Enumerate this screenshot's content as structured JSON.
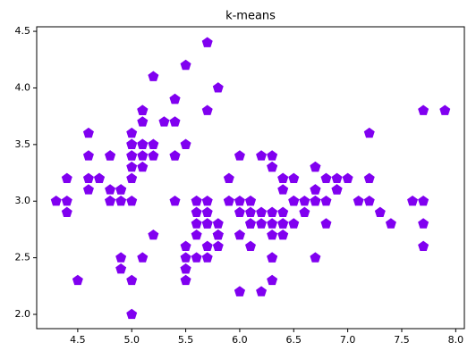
{
  "chart_data": {
    "type": "scatter",
    "title": "k-means",
    "color": "#8000f0",
    "marker": "pentagon",
    "x": [
      5.1,
      4.9,
      4.7,
      4.6,
      5.0,
      5.4,
      4.6,
      5.0,
      4.4,
      4.9,
      5.4,
      4.8,
      4.8,
      4.3,
      5.8,
      5.7,
      5.4,
      5.1,
      5.7,
      5.1,
      5.4,
      5.1,
      4.6,
      5.1,
      4.8,
      5.0,
      5.0,
      5.2,
      5.2,
      4.7,
      4.8,
      5.4,
      5.2,
      5.5,
      4.9,
      5.0,
      5.5,
      4.9,
      4.4,
      5.1,
      5.0,
      4.5,
      4.4,
      5.0,
      5.1,
      4.8,
      5.1,
      4.6,
      5.3,
      5.0,
      7.0,
      6.4,
      6.9,
      5.5,
      6.5,
      5.7,
      6.3,
      4.9,
      6.6,
      5.2,
      5.0,
      5.9,
      6.0,
      6.1,
      5.6,
      6.7,
      5.6,
      5.8,
      6.2,
      5.6,
      5.9,
      6.1,
      6.3,
      6.1,
      6.4,
      6.6,
      6.8,
      6.7,
      6.0,
      5.7,
      5.5,
      5.5,
      5.8,
      6.0,
      5.4,
      6.0,
      6.7,
      6.3,
      5.6,
      5.5,
      5.5,
      6.1,
      5.8,
      5.0,
      5.6,
      5.7,
      5.7,
      6.2,
      5.1,
      5.7,
      6.3,
      5.8,
      7.1,
      6.3,
      6.5,
      7.6,
      4.9,
      7.3,
      6.7,
      7.2,
      6.5,
      6.4,
      6.8,
      5.7,
      5.8,
      6.4,
      6.5,
      7.7,
      7.7,
      6.0,
      6.9,
      5.6,
      7.7,
      6.3,
      6.7,
      7.2,
      6.2,
      6.1,
      6.4,
      7.2,
      7.4,
      7.9,
      6.4,
      6.3,
      6.1,
      7.7,
      6.3,
      6.4,
      6.0,
      6.9,
      6.7,
      6.9,
      5.8,
      6.8,
      6.7,
      6.7,
      6.3,
      6.5,
      6.2,
      5.9
    ],
    "y": [
      3.5,
      3.0,
      3.2,
      3.1,
      3.6,
      3.9,
      3.4,
      3.4,
      2.9,
      3.1,
      3.7,
      3.4,
      3.0,
      3.0,
      4.0,
      4.4,
      3.9,
      3.5,
      3.8,
      3.8,
      3.4,
      3.7,
      3.6,
      3.3,
      3.4,
      3.0,
      3.4,
      3.5,
      3.4,
      3.2,
      3.1,
      3.4,
      4.1,
      4.2,
      3.1,
      3.2,
      3.5,
      3.1,
      3.0,
      3.4,
      3.5,
      2.3,
      3.2,
      3.5,
      3.8,
      3.0,
      3.8,
      3.2,
      3.7,
      3.3,
      3.2,
      3.2,
      3.1,
      2.3,
      2.8,
      2.8,
      3.3,
      2.4,
      2.9,
      2.7,
      2.0,
      3.0,
      2.2,
      2.9,
      2.9,
      3.1,
      3.0,
      2.7,
      2.2,
      2.5,
      3.2,
      2.8,
      2.5,
      2.8,
      2.9,
      3.0,
      2.8,
      3.0,
      2.9,
      2.6,
      2.4,
      2.4,
      2.7,
      2.7,
      3.0,
      3.4,
      3.1,
      2.3,
      3.0,
      2.5,
      2.6,
      3.0,
      2.6,
      2.3,
      2.7,
      3.0,
      2.9,
      2.9,
      2.5,
      2.8,
      3.3,
      2.7,
      3.0,
      2.9,
      3.0,
      3.0,
      2.5,
      2.9,
      2.5,
      3.6,
      3.2,
      2.7,
      3.0,
      2.5,
      2.8,
      3.2,
      3.0,
      3.8,
      2.6,
      2.2,
      3.2,
      2.8,
      2.8,
      2.7,
      3.3,
      3.2,
      2.8,
      3.0,
      2.8,
      3.0,
      2.8,
      3.8,
      2.8,
      2.8,
      2.6,
      3.0,
      3.4,
      3.1,
      3.0,
      3.1,
      3.1,
      3.1,
      2.7,
      3.2,
      3.3,
      3.0,
      2.5,
      3.0,
      3.4,
      3.0
    ],
    "xlim": [
      4.12,
      8.08
    ],
    "ylim": [
      1.874,
      4.54
    ],
    "xticks": [
      4.5,
      {
        "value": 5,
        "label": "5.0"
      },
      5.5,
      {
        "value": 6,
        "label": "6.0"
      },
      6.5,
      {
        "value": 7,
        "label": "7.0"
      },
      7.5,
      {
        "value": 8,
        "label": "8.0"
      }
    ],
    "yticks": [
      {
        "value": 2,
        "label": "2.0"
      },
      2.5,
      {
        "value": 3,
        "label": "3.0"
      },
      3.5,
      {
        "value": 4,
        "label": "4.0"
      },
      4.5
    ]
  }
}
